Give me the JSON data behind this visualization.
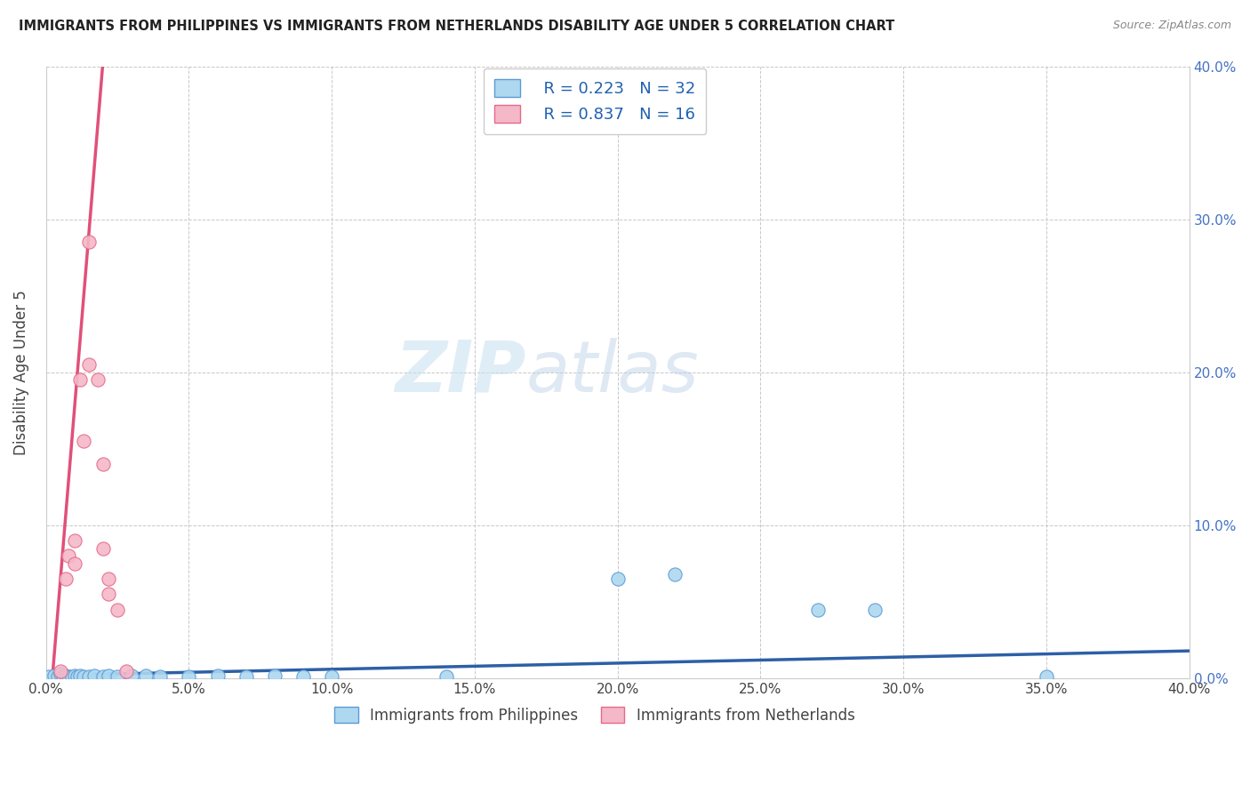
{
  "title": "IMMIGRANTS FROM PHILIPPINES VS IMMIGRANTS FROM NETHERLANDS DISABILITY AGE UNDER 5 CORRELATION CHART",
  "source": "Source: ZipAtlas.com",
  "ylabel": "Disability Age Under 5",
  "xlim": [
    0,
    0.4
  ],
  "ylim": [
    0,
    0.4
  ],
  "x_ticks": [
    0.0,
    0.05,
    0.1,
    0.15,
    0.2,
    0.25,
    0.3,
    0.35,
    0.4
  ],
  "y_ticks": [
    0.0,
    0.1,
    0.2,
    0.3,
    0.4
  ],
  "watermark_zip": "ZIP",
  "watermark_atlas": "atlas",
  "legend_r1": "R = 0.223",
  "legend_n1": "N = 32",
  "legend_r2": "R = 0.837",
  "legend_n2": "N = 16",
  "philippines_color": "#add8f0",
  "netherlands_color": "#f4b8c8",
  "philippines_edge_color": "#5b9bd5",
  "netherlands_edge_color": "#e8688a",
  "philippines_line_color": "#2d5fa6",
  "netherlands_line_color": "#e0507a",
  "philippines_scatter": [
    [
      0.001,
      0.001
    ],
    [
      0.003,
      0.002
    ],
    [
      0.004,
      0.001
    ],
    [
      0.005,
      0.003
    ],
    [
      0.006,
      0.001
    ],
    [
      0.007,
      0.002
    ],
    [
      0.008,
      0.001
    ],
    [
      0.009,
      0.001
    ],
    [
      0.01,
      0.002
    ],
    [
      0.011,
      0.001
    ],
    [
      0.012,
      0.002
    ],
    [
      0.013,
      0.001
    ],
    [
      0.015,
      0.001
    ],
    [
      0.017,
      0.002
    ],
    [
      0.02,
      0.001
    ],
    [
      0.022,
      0.002
    ],
    [
      0.025,
      0.001
    ],
    [
      0.03,
      0.002
    ],
    [
      0.035,
      0.002
    ],
    [
      0.04,
      0.001
    ],
    [
      0.05,
      0.001
    ],
    [
      0.06,
      0.002
    ],
    [
      0.07,
      0.001
    ],
    [
      0.08,
      0.002
    ],
    [
      0.09,
      0.001
    ],
    [
      0.1,
      0.001
    ],
    [
      0.14,
      0.001
    ],
    [
      0.2,
      0.065
    ],
    [
      0.22,
      0.068
    ],
    [
      0.27,
      0.045
    ],
    [
      0.29,
      0.045
    ],
    [
      0.35,
      0.001
    ]
  ],
  "netherlands_scatter": [
    [
      0.005,
      0.005
    ],
    [
      0.007,
      0.065
    ],
    [
      0.008,
      0.08
    ],
    [
      0.01,
      0.09
    ],
    [
      0.01,
      0.075
    ],
    [
      0.012,
      0.195
    ],
    [
      0.013,
      0.155
    ],
    [
      0.015,
      0.205
    ],
    [
      0.015,
      0.285
    ],
    [
      0.018,
      0.195
    ],
    [
      0.02,
      0.14
    ],
    [
      0.02,
      0.085
    ],
    [
      0.022,
      0.055
    ],
    [
      0.022,
      0.065
    ],
    [
      0.025,
      0.045
    ],
    [
      0.028,
      0.005
    ]
  ],
  "philippines_trendline": [
    [
      0.0,
      0.002
    ],
    [
      0.4,
      0.018
    ]
  ],
  "netherlands_trendline": [
    [
      0.0,
      -0.05
    ],
    [
      0.022,
      0.45
    ]
  ]
}
